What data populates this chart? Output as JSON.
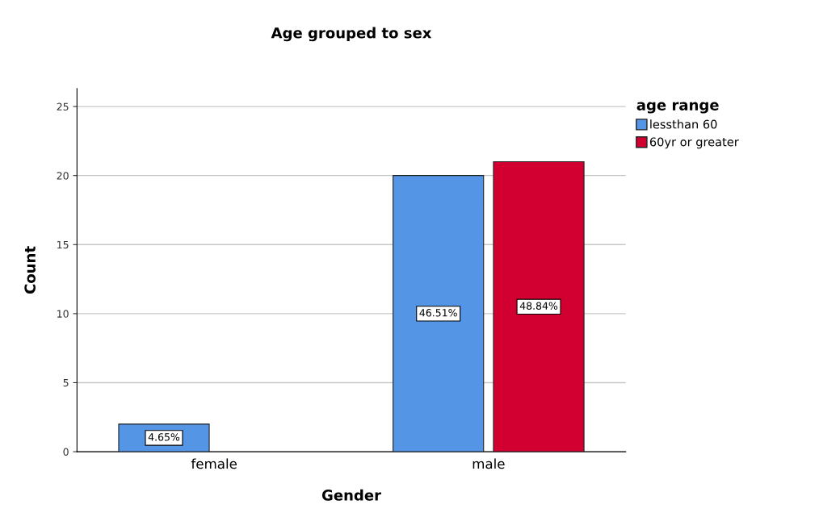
{
  "chart_data": {
    "type": "bar",
    "title": "Age grouped to sex",
    "xlabel": "Gender",
    "ylabel": "Count",
    "legend_title": "age range",
    "categories": [
      "female",
      "male"
    ],
    "series": [
      {
        "name": "lessthan 60",
        "color": "#5595e6",
        "values": [
          2,
          20
        ]
      },
      {
        "name": "60yr or greater",
        "color": "#d20030",
        "values": [
          null,
          21
        ]
      }
    ],
    "annotations": [
      "4.65%",
      "46.51%",
      "48.84%"
    ],
    "ylim": [
      0,
      26.3
    ],
    "yticks": [
      0,
      5,
      10,
      15,
      20,
      25
    ],
    "grid": "y",
    "legend": "top right"
  }
}
